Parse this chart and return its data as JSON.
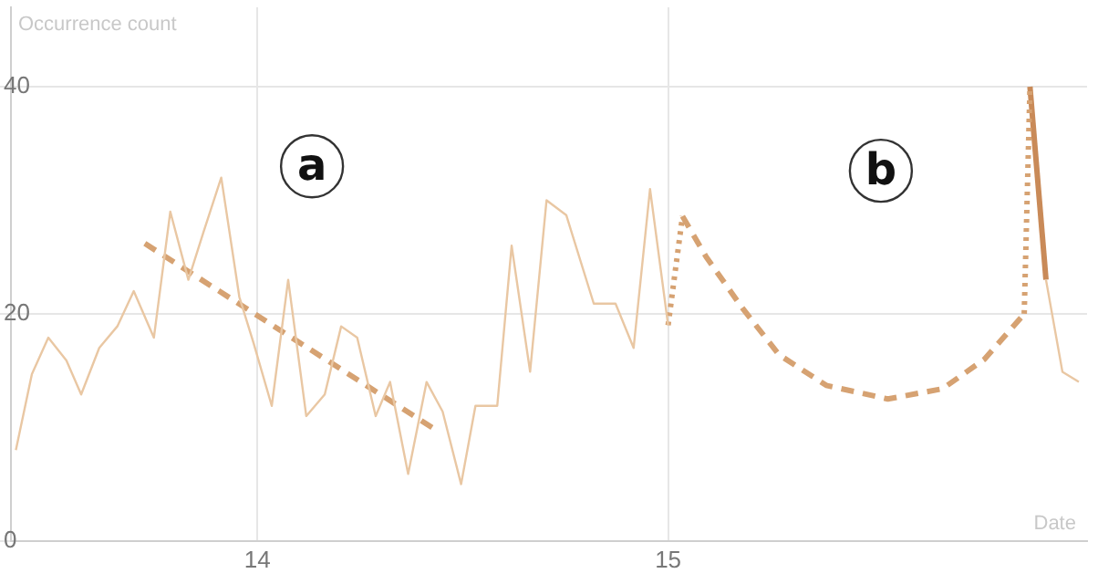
{
  "chart_data": {
    "type": "line",
    "xlabel": "Date",
    "ylabel": "Occurrence count",
    "xlim": [
      13.4,
      16.02
    ],
    "xticks": [
      14,
      15
    ],
    "ylim": [
      0,
      47
    ],
    "yticks": [
      0,
      20,
      40
    ],
    "grid": true,
    "legend": false,
    "marker": "none",
    "annotations": [
      {
        "text": "a",
        "x": 14.133,
        "y": 33
      },
      {
        "text": "b",
        "x": 15.518,
        "y": 32.6
      }
    ],
    "series": [
      {
        "color": "#e9c7a3",
        "line_style": "solid",
        "x": [
          13.412,
          13.451,
          13.491,
          13.535,
          13.571,
          13.615,
          13.659,
          13.699,
          13.748,
          13.788,
          13.832,
          13.867,
          13.912,
          13.956,
          13.991,
          14.035,
          14.075,
          14.119,
          14.164,
          14.204,
          14.243,
          14.288,
          14.323,
          14.367,
          14.412,
          14.451,
          14.496,
          14.531,
          14.584,
          14.619,
          14.664,
          14.704,
          14.752,
          14.819,
          14.872,
          14.916,
          14.956,
          15.0,
          15.5,
          15.92,
          15.96,
          16.0
        ],
        "values": [
          8,
          14.7,
          17.9,
          15.9,
          12.9,
          17,
          18.9,
          22,
          17.9,
          29,
          23,
          27,
          32,
          21.5,
          17.4,
          11.9,
          23,
          11,
          12.9,
          18.9,
          17.9,
          11,
          14,
          5.9,
          14,
          11.4,
          5,
          11.9,
          11.9,
          26,
          14.9,
          30,
          28.7,
          20.9,
          20.9,
          17,
          31,
          19,
          null,
          23,
          14.9,
          14
        ]
      },
      {
        "color": "#d6a272",
        "line_style": "dashed",
        "x": [
          13.726,
          14.429
        ],
        "values": [
          26.2,
          9.9
        ]
      },
      {
        "color": "#d6a272",
        "line_style": "dotted",
        "x": [
          15.0,
          15.035
        ],
        "values": [
          19,
          28.6
        ]
      },
      {
        "color": "#d6a272",
        "line_style": "dashed",
        "x": [
          15.035,
          15.093,
          15.181,
          15.27,
          15.385,
          15.535,
          15.668,
          15.77,
          15.867
        ],
        "values": [
          28.6,
          25,
          20.5,
          16.4,
          13.7,
          12.5,
          13.4,
          16,
          20
        ]
      },
      {
        "color": "#d6a272",
        "line_style": "dotted",
        "x": [
          15.867,
          15.881
        ],
        "values": [
          20,
          40
        ]
      },
      {
        "color": "#c98a58",
        "line_style": "solid",
        "x": [
          15.881,
          15.92
        ],
        "values": [
          40,
          23
        ]
      }
    ]
  }
}
